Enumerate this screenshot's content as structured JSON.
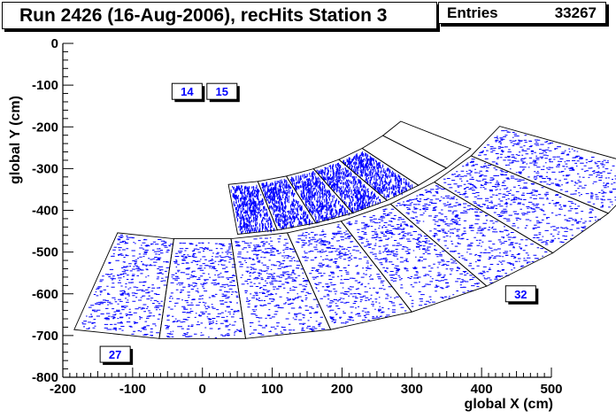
{
  "chart_data": {
    "type": "scatter",
    "title": "Run 2426 (16-Aug-2006), recHits Station 3",
    "xlabel": "global X (cm)",
    "ylabel": "global Y (cm)",
    "xlim": [
      -200,
      500
    ],
    "ylim": [
      -800,
      0
    ],
    "xticks": [
      -200,
      -100,
      0,
      100,
      200,
      300,
      400,
      500
    ],
    "yticks": [
      0,
      -100,
      -200,
      -300,
      -400,
      -500,
      -600,
      -700,
      -800
    ],
    "xtick_labels": [
      "-200",
      "-100",
      "0",
      "100",
      "200",
      "300",
      "400",
      "500"
    ],
    "ytick_labels": [
      "0",
      "-100",
      "-200",
      "-300",
      "-400",
      "-500",
      "-600",
      "-700",
      "-800"
    ],
    "stats": {
      "label": "Entries",
      "value": "33267"
    },
    "marker_color": "#0000ff",
    "grid": false,
    "rings": [
      {
        "name": "inner",
        "r_in": 340,
        "r_out": 460,
        "sectors": [
          {
            "a0": 276.3,
            "a1": 283.5,
            "filled": true
          },
          {
            "a0": 283.5,
            "a1": 290.7,
            "filled": true
          },
          {
            "a0": 290.7,
            "a1": 297.9,
            "filled": true
          },
          {
            "a0": 297.9,
            "a1": 305.1,
            "filled": true
          },
          {
            "a0": 305.1,
            "a1": 312.3,
            "filled": true
          },
          {
            "a0": 312.3,
            "a1": 319.5,
            "filled": false
          },
          {
            "a0": 319.5,
            "a1": 326.7,
            "filled": false
          }
        ]
      },
      {
        "name": "outer",
        "r_in": 470,
        "r_out": 710,
        "sectors": [
          {
            "a0": 255.0,
            "a1": 265.0,
            "filled": true
          },
          {
            "a0": 265.0,
            "a1": 275.0,
            "filled": true
          },
          {
            "a0": 275.0,
            "a1": 285.0,
            "filled": true
          },
          {
            "a0": 285.0,
            "a1": 295.0,
            "filled": true
          },
          {
            "a0": 295.0,
            "a1": 305.0,
            "filled": true
          },
          {
            "a0": 305.0,
            "a1": 315.0,
            "filled": true
          },
          {
            "a0": 315.0,
            "a1": 325.0,
            "filled": true
          },
          {
            "a0": 325.0,
            "a1": 335.0,
            "filled": true
          }
        ]
      }
    ],
    "annotations": [
      {
        "text": "14",
        "x": -22,
        "y": -115
      },
      {
        "text": "15",
        "x": 28,
        "y": -115
      },
      {
        "text": "27",
        "x": -125,
        "y": -745
      },
      {
        "text": "32",
        "x": 456,
        "y": -600
      }
    ]
  }
}
